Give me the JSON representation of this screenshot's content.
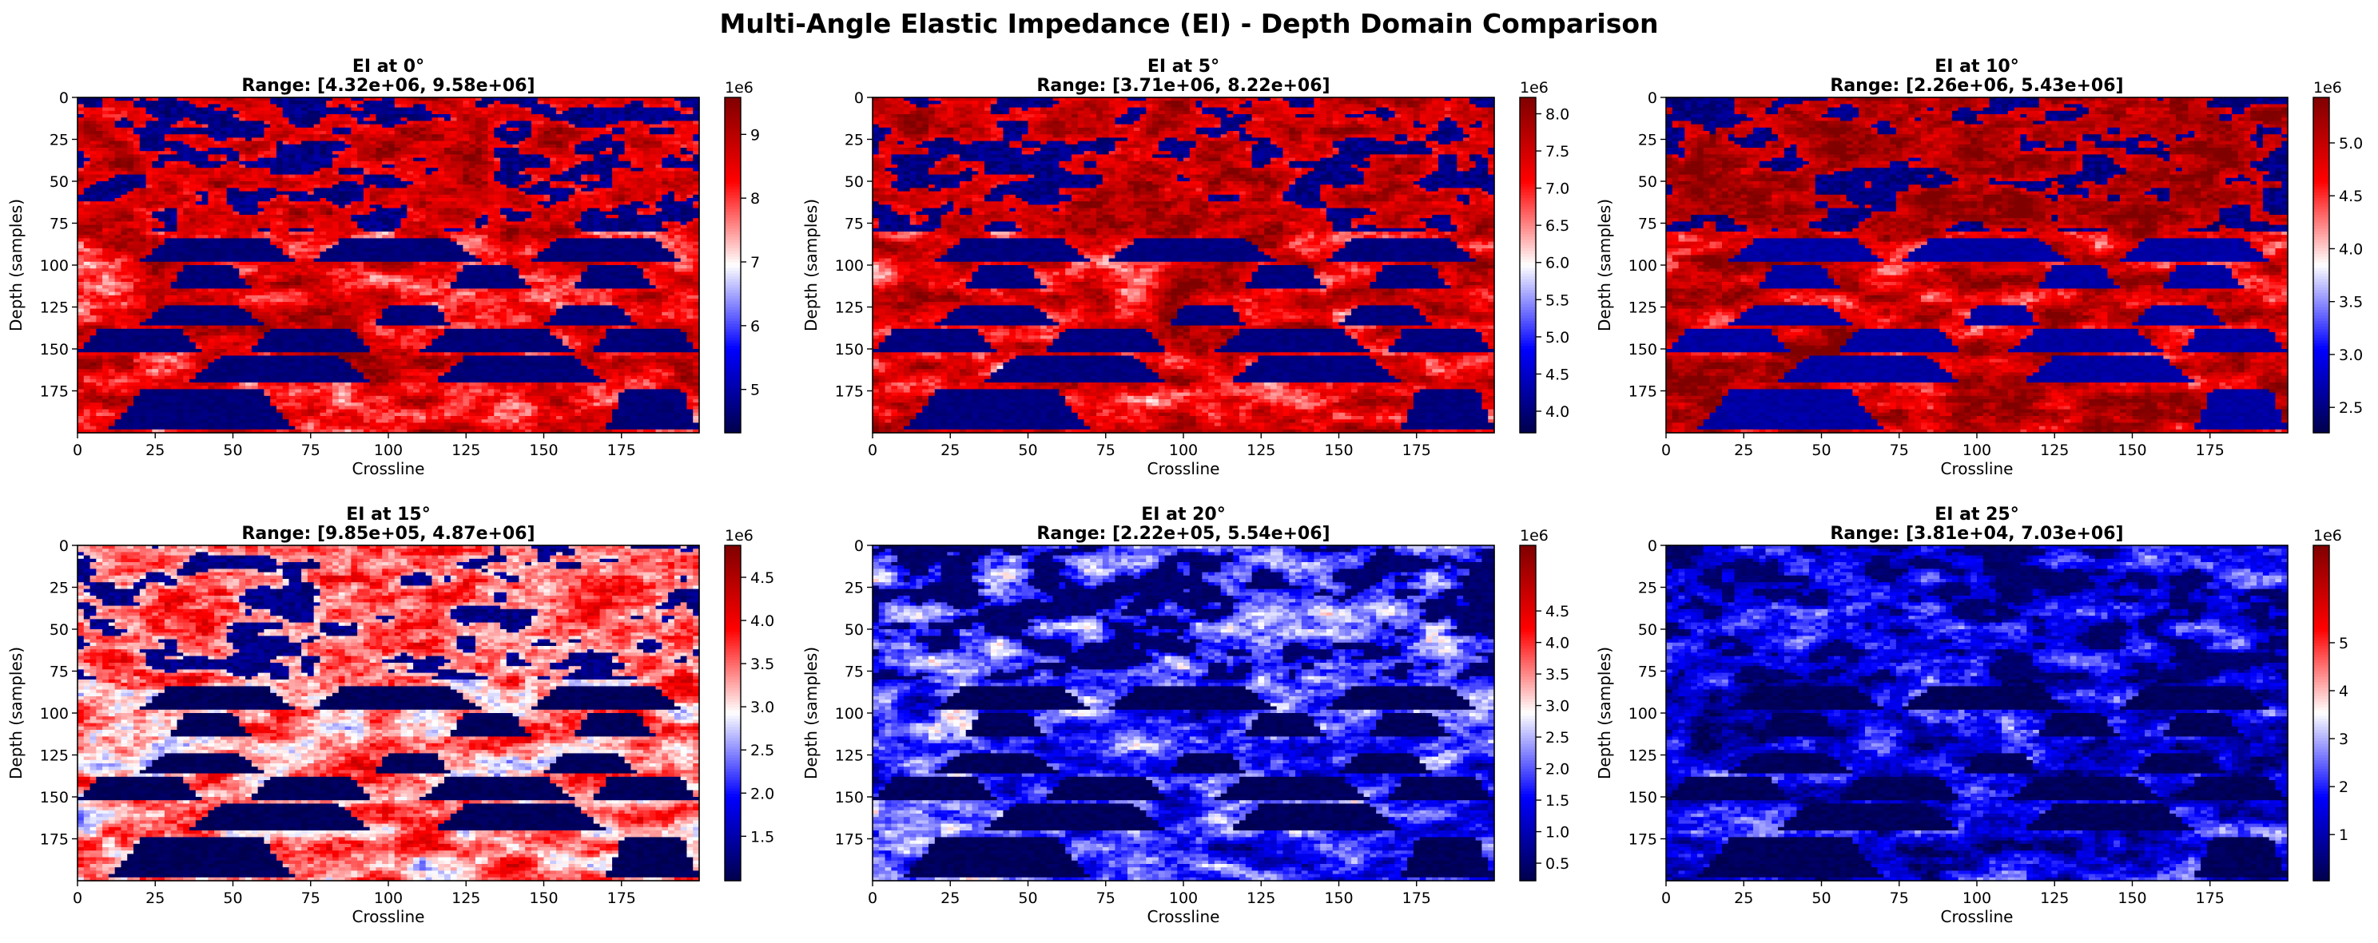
{
  "figure": {
    "suptitle": "Multi-Angle Elastic Impedance (EI) - Depth Domain Comparison"
  },
  "chart_data": [
    {
      "type": "heatmap",
      "title": "EI at 0°",
      "subtitle": "Range: [4.32e+06, 9.58e+06]",
      "xlabel": "Crossline",
      "ylabel": "Depth (samples)",
      "xlim": [
        0,
        200
      ],
      "ylim": [
        200,
        0
      ],
      "xticks": [
        "0",
        "25",
        "50",
        "75",
        "100",
        "125",
        "150",
        "175"
      ],
      "yticks": [
        "0",
        "25",
        "50",
        "75",
        "100",
        "125",
        "150",
        "175"
      ],
      "colormap": "seismic",
      "vmin": 4320000.0,
      "vmax": 9580000.0,
      "colorbar_offset": "1e6",
      "colorbar_ticks": [
        "5",
        "6",
        "7",
        "8",
        "9"
      ],
      "colorbar_tick_values": [
        5,
        6,
        7,
        8,
        9
      ],
      "colorbar_scale": 1000000.0,
      "background_level": 0.78,
      "wedge_level": 0.04
    },
    {
      "type": "heatmap",
      "title": "EI at 5°",
      "subtitle": "Range: [3.71e+06, 8.22e+06]",
      "xlabel": "Crossline",
      "ylabel": "Depth (samples)",
      "xlim": [
        0,
        200
      ],
      "ylim": [
        200,
        0
      ],
      "xticks": [
        "0",
        "25",
        "50",
        "75",
        "100",
        "125",
        "150",
        "175"
      ],
      "yticks": [
        "0",
        "25",
        "50",
        "75",
        "100",
        "125",
        "150",
        "175"
      ],
      "colormap": "seismic",
      "vmin": 3710000.0,
      "vmax": 8220000.0,
      "colorbar_offset": "1e6",
      "colorbar_ticks": [
        "4.0",
        "4.5",
        "5.0",
        "5.5",
        "6.0",
        "6.5",
        "7.0",
        "7.5",
        "8.0"
      ],
      "colorbar_tick_values": [
        4.0,
        4.5,
        5.0,
        5.5,
        6.0,
        6.5,
        7.0,
        7.5,
        8.0
      ],
      "colorbar_scale": 1000000.0,
      "background_level": 0.8,
      "wedge_level": 0.05
    },
    {
      "type": "heatmap",
      "title": "EI at 10°",
      "subtitle": "Range: [2.26e+06, 5.43e+06]",
      "xlabel": "Crossline",
      "ylabel": "Depth (samples)",
      "xlim": [
        0,
        200
      ],
      "ylim": [
        200,
        0
      ],
      "xticks": [
        "0",
        "25",
        "50",
        "75",
        "100",
        "125",
        "150",
        "175"
      ],
      "yticks": [
        "0",
        "25",
        "50",
        "75",
        "100",
        "125",
        "150",
        "175"
      ],
      "colormap": "seismic",
      "vmin": 2260000.0,
      "vmax": 5430000.0,
      "colorbar_offset": "1e6",
      "colorbar_ticks": [
        "2.5",
        "3.0",
        "3.5",
        "4.0",
        "4.5",
        "5.0"
      ],
      "colorbar_tick_values": [
        2.5,
        3.0,
        3.5,
        4.0,
        4.5,
        5.0
      ],
      "colorbar_scale": 1000000.0,
      "background_level": 0.85,
      "wedge_level": 0.1
    },
    {
      "type": "heatmap",
      "title": "EI at 15°",
      "subtitle": "Range: [9.85e+05, 4.87e+06]",
      "xlabel": "Crossline",
      "ylabel": "Depth (samples)",
      "xlim": [
        0,
        200
      ],
      "ylim": [
        200,
        0
      ],
      "xticks": [
        "0",
        "25",
        "50",
        "75",
        "100",
        "125",
        "150",
        "175"
      ],
      "yticks": [
        "0",
        "25",
        "50",
        "75",
        "100",
        "125",
        "150",
        "175"
      ],
      "colormap": "seismic",
      "vmin": 985000.0,
      "vmax": 4870000.0,
      "colorbar_offset": "1e6",
      "colorbar_ticks": [
        "1.5",
        "2.0",
        "2.5",
        "3.0",
        "3.5",
        "4.0",
        "4.5"
      ],
      "colorbar_tick_values": [
        1.5,
        2.0,
        2.5,
        3.0,
        3.5,
        4.0,
        4.5
      ],
      "colorbar_scale": 1000000.0,
      "background_level": 0.6,
      "wedge_level": 0.0
    },
    {
      "type": "heatmap",
      "title": "EI at 20°",
      "subtitle": "Range: [2.22e+05, 5.54e+06]",
      "xlabel": "Crossline",
      "ylabel": "Depth (samples)",
      "xlim": [
        0,
        200
      ],
      "ylim": [
        200,
        0
      ],
      "xticks": [
        "0",
        "25",
        "50",
        "75",
        "100",
        "125",
        "150",
        "175"
      ],
      "yticks": [
        "0",
        "25",
        "50",
        "75",
        "100",
        "125",
        "150",
        "175"
      ],
      "colormap": "seismic",
      "vmin": 222000.0,
      "vmax": 5540000.0,
      "colorbar_offset": "1e6",
      "colorbar_ticks": [
        "0.5",
        "1.0",
        "1.5",
        "2.0",
        "2.5",
        "3.0",
        "3.5",
        "4.0",
        "4.5"
      ],
      "colorbar_tick_values": [
        0.5,
        1.0,
        1.5,
        2.0,
        2.5,
        3.0,
        3.5,
        4.0,
        4.5
      ],
      "colorbar_scale": 1000000.0,
      "background_level": 0.3,
      "wedge_level": 0.0
    },
    {
      "type": "heatmap",
      "title": "EI at 25°",
      "subtitle": "Range: [3.81e+04, 7.03e+06]",
      "xlabel": "Crossline",
      "ylabel": "Depth (samples)",
      "xlim": [
        0,
        200
      ],
      "ylim": [
        200,
        0
      ],
      "xticks": [
        "0",
        "25",
        "50",
        "75",
        "100",
        "125",
        "150",
        "175"
      ],
      "yticks": [
        "0",
        "25",
        "50",
        "75",
        "100",
        "125",
        "150",
        "175"
      ],
      "colormap": "seismic",
      "vmin": 38100.0,
      "vmax": 7030000.0,
      "colorbar_offset": "1e6",
      "colorbar_ticks": [
        "1",
        "2",
        "3",
        "4",
        "5"
      ],
      "colorbar_tick_values": [
        1,
        2,
        3,
        4,
        5
      ],
      "colorbar_scale": 1000000.0,
      "background_level": 0.2,
      "wedge_level": 0.0
    }
  ]
}
